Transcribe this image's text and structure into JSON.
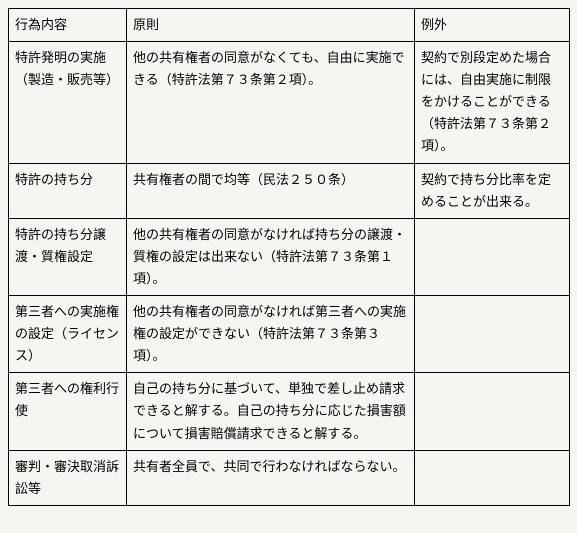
{
  "header": {
    "col1": "行為内容",
    "col2": "原則",
    "col3": "例外"
  },
  "rows": [
    {
      "c1": "特許発明の実施（製造・販売等）",
      "c2": "他の共有権者の同意がなくても、自由に実施できる（特許法第７３条第２項）。",
      "c3": "契約で別段定めた場合には、自由実施に制限をかけることができる（特許法第７３条第２項）。"
    },
    {
      "c1": "特許の持ち分",
      "c2": "共有権者の間で均等（民法２５０条）",
      "c3": "契約で持ち分比率を定めることが出来る。"
    },
    {
      "c1": "特許の持ち分譲渡・質権設定",
      "c2": "他の共有権者の同意がなければ持ち分の譲渡・質権の設定は出来ない（特許法第７３条第１項）。",
      "c3": ""
    },
    {
      "c1": "第三者への実施権の設定（ライセンス）",
      "c2": "他の共有権者の同意がなければ第三者への実施権の設定ができない（特許法第７３条第３項）。",
      "c3": ""
    },
    {
      "c1": "第三者への権利行使",
      "c2": "自己の持ち分に基づいて、単独で差し止め請求できると解する。自己の持ち分に応じた損害額について損害賠償請求できると解する。",
      "c3": ""
    },
    {
      "c1": "審判・審決取消訴訟等",
      "c2": "共有者全員で、共同で行わなければならない。",
      "c3": ""
    }
  ]
}
